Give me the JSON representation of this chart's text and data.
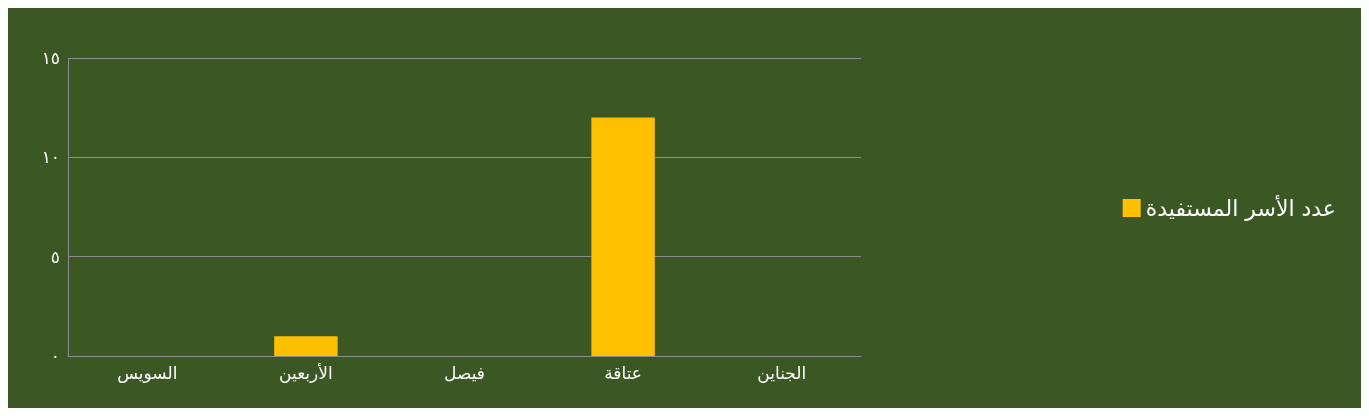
{
  "chart_data": {
    "type": "bar",
    "categories": [
      "السويس",
      "الأربعين",
      "فيصل",
      "عتاقة",
      "الجناين"
    ],
    "series": [
      {
        "name": "عدد الأسر المستفيدة",
        "color": "#ffc000",
        "values": [
          0,
          1,
          0,
          12,
          0
        ]
      }
    ],
    "ylim": [
      0,
      15
    ],
    "yticks": [
      {
        "value": 0,
        "label": "٠"
      },
      {
        "value": 5,
        "label": "٥"
      },
      {
        "value": 10,
        "label": "١٠"
      },
      {
        "value": 15,
        "label": "١٥"
      }
    ],
    "grid": "y",
    "legend": "right"
  }
}
